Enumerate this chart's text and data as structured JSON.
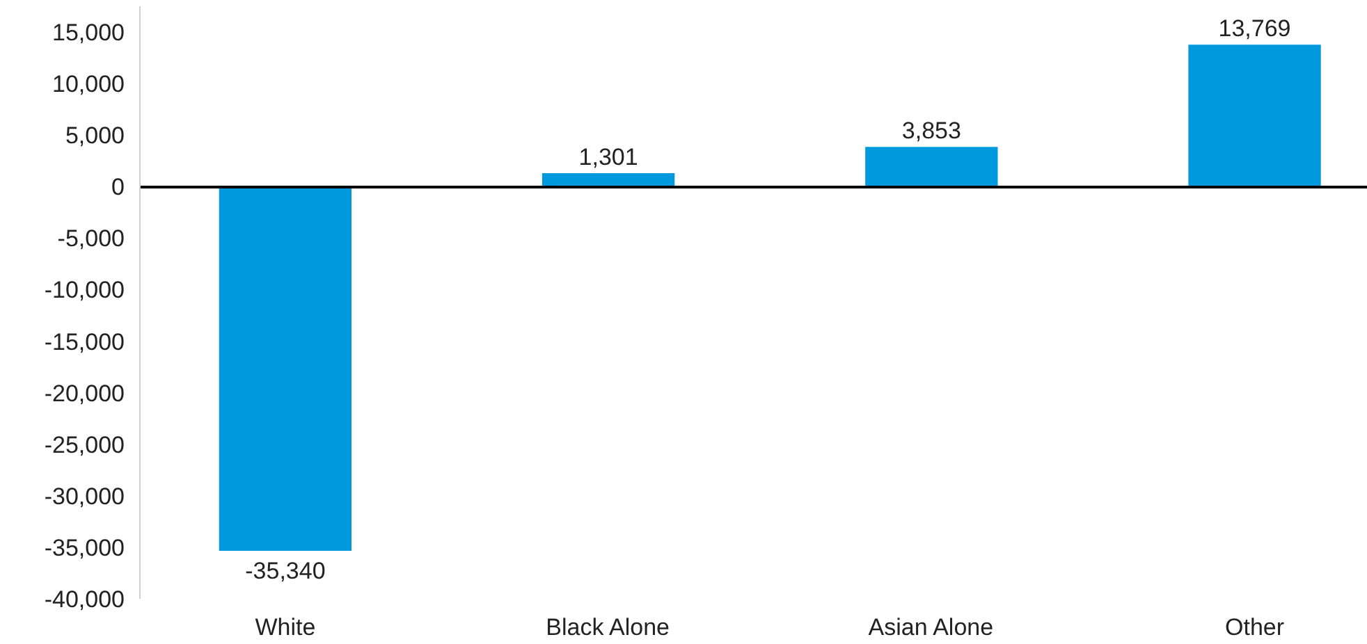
{
  "chart_data": {
    "type": "bar",
    "categories": [
      "White",
      "Black Alone",
      "Asian Alone",
      "Other"
    ],
    "values": [
      -35340,
      1301,
      3853,
      13769
    ],
    "value_labels": [
      "-35,340",
      "1,301",
      "3,853",
      "13,769"
    ],
    "color": "#0099dd",
    "ylim": [
      -40000,
      17500
    ],
    "yticks": [
      {
        "value": 15000,
        "label": "15,000"
      },
      {
        "value": 10000,
        "label": "10,000"
      },
      {
        "value": 5000,
        "label": "5,000"
      },
      {
        "value": 0,
        "label": "0"
      },
      {
        "value": -5000,
        "label": "-5,000"
      },
      {
        "value": -10000,
        "label": "-10,000"
      },
      {
        "value": -15000,
        "label": "-15,000"
      },
      {
        "value": -20000,
        "label": "-20,000"
      },
      {
        "value": -25000,
        "label": "-25,000"
      },
      {
        "value": -30000,
        "label": "-30,000"
      },
      {
        "value": -35000,
        "label": "-35,000"
      },
      {
        "value": -40000,
        "label": "-40,000"
      }
    ]
  }
}
